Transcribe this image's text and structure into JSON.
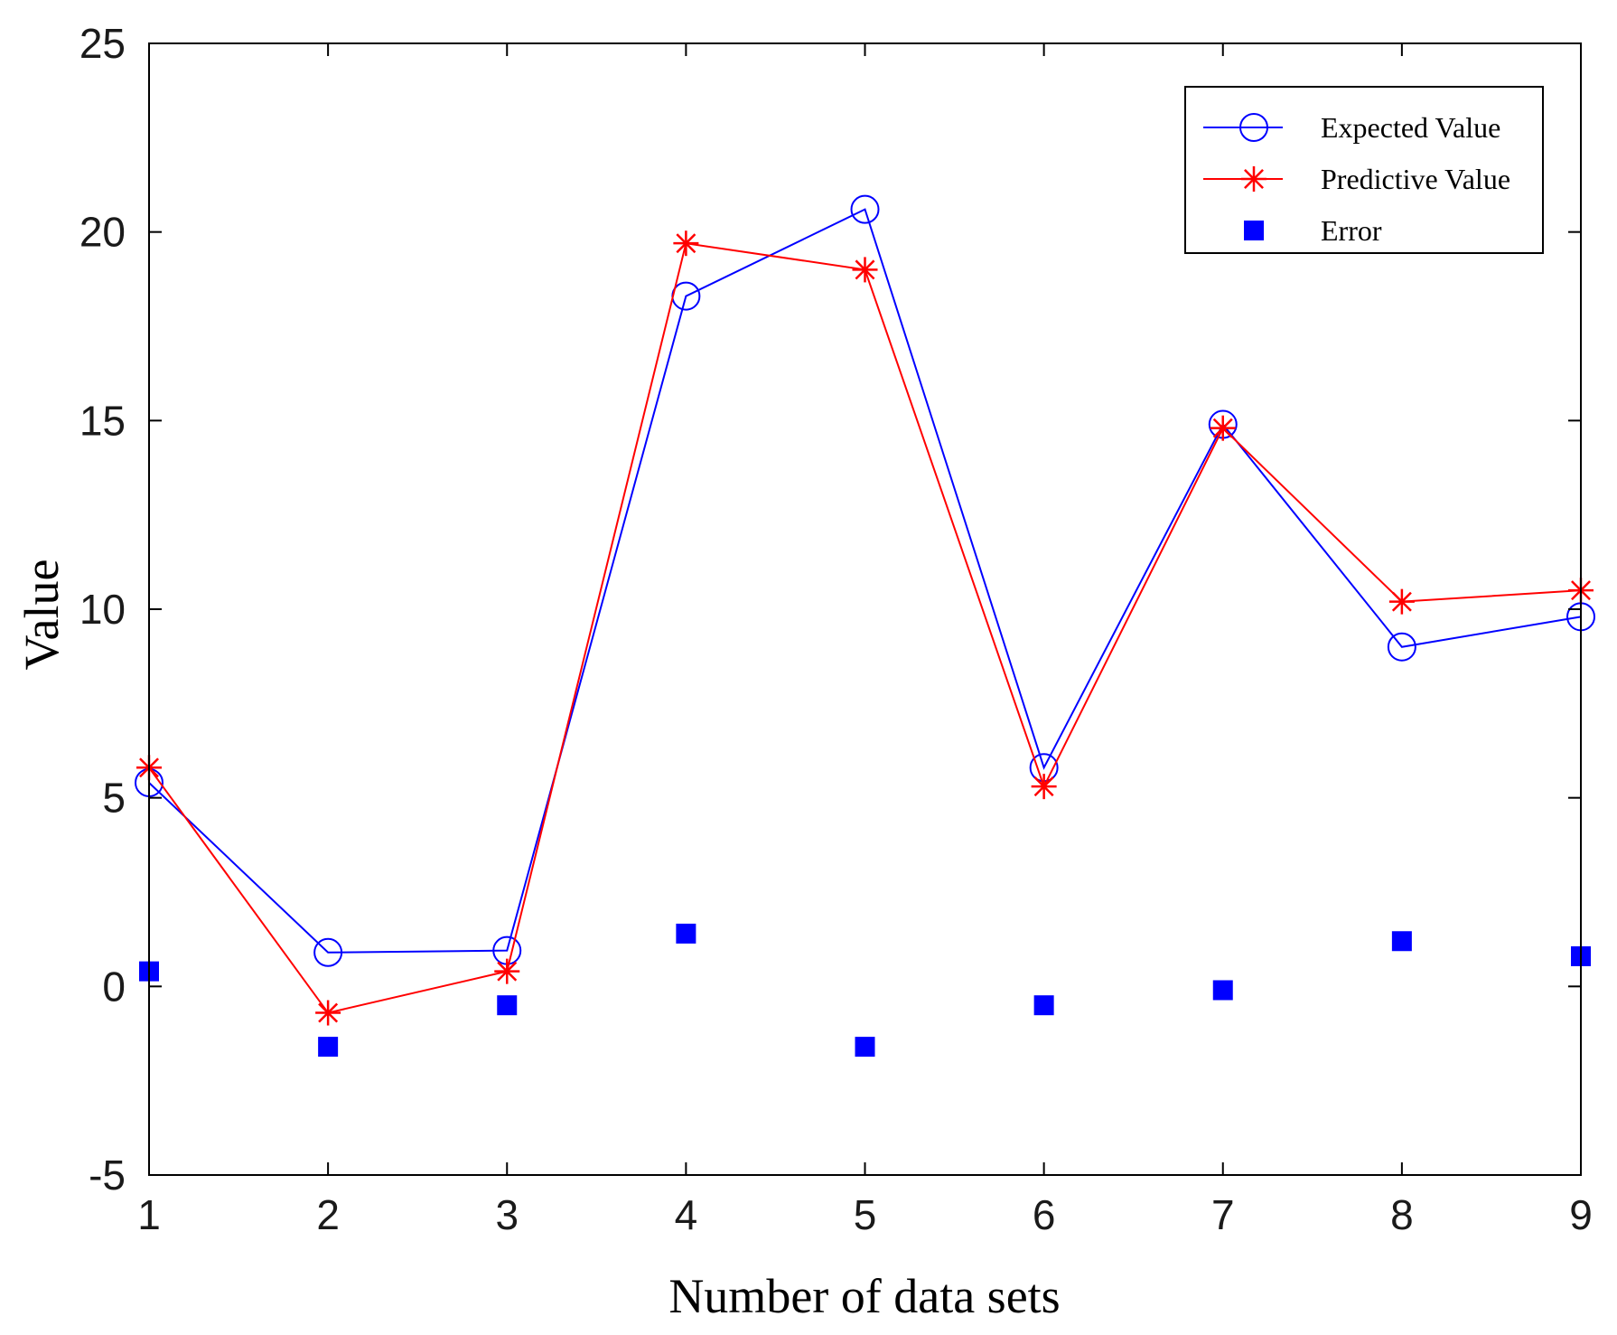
{
  "chart_data": {
    "type": "line",
    "title": "",
    "xlabel": "Number of data sets",
    "ylabel": "Value",
    "x": [
      1,
      2,
      3,
      4,
      5,
      6,
      7,
      8,
      9
    ],
    "xticks": [
      "1",
      "2",
      "3",
      "4",
      "5",
      "6",
      "7",
      "8",
      "9"
    ],
    "yticks": [
      "-5",
      "0",
      "5",
      "10",
      "15",
      "20",
      "25"
    ],
    "xlim": [
      1,
      9
    ],
    "ylim": [
      -5,
      25
    ],
    "grid": false,
    "legend_position": "top-right",
    "series": [
      {
        "name": "Expected Value",
        "style": "line-circle",
        "color": "#0000ff",
        "values": [
          5.4,
          0.9,
          0.95,
          18.3,
          20.6,
          5.8,
          14.9,
          9.0,
          9.8
        ]
      },
      {
        "name": "Predictive Value",
        "style": "line-star",
        "color": "#ff0000",
        "values": [
          5.8,
          -0.7,
          0.4,
          19.7,
          19.0,
          5.3,
          14.8,
          10.2,
          10.5
        ]
      },
      {
        "name": "Error",
        "style": "square-markers",
        "color": "#0000ff",
        "values": [
          0.4,
          -1.6,
          -0.5,
          1.4,
          -1.6,
          -0.5,
          -0.1,
          1.2,
          0.8
        ]
      }
    ]
  }
}
